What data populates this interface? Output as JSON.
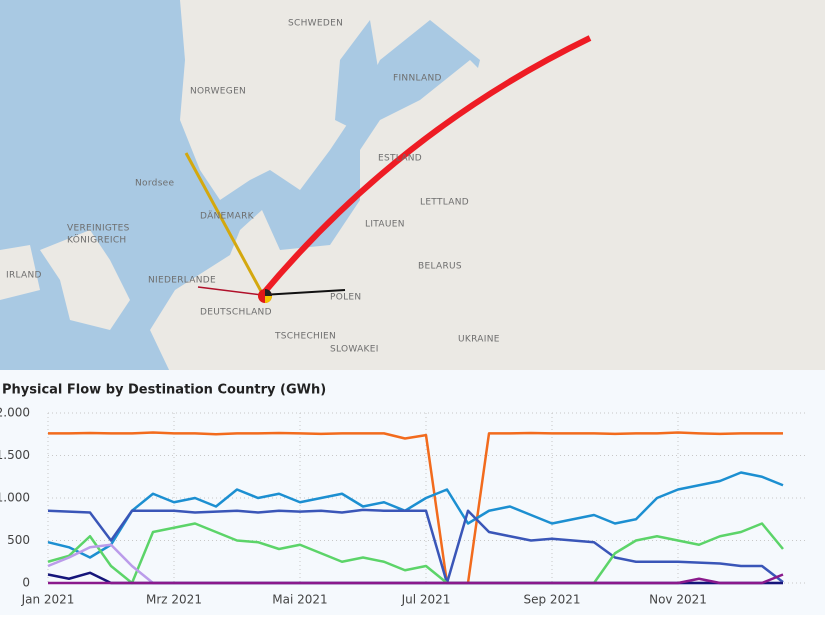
{
  "map": {
    "labels": [
      "SCHWEDEN",
      "FINNLAND",
      "NORWEGEN",
      "ESTLAND",
      "Nordsee",
      "DÄNEMARK",
      "LETTLAND",
      "LITAUEN",
      "VEREINIGTES",
      "KÖNIGREICH",
      "IRLAND",
      "NIEDERLANDE",
      "BELARUS",
      "DEUTSCHLAND",
      "POLEN",
      "TSCHECHIEN",
      "SLOWAKEI",
      "UKRAINE"
    ]
  },
  "chart_data": {
    "type": "line",
    "title": "Physical Flow by Destination Country (GWh)",
    "categories": [
      "Jan 2021",
      null,
      null,
      null,
      null,
      null,
      "Mrz 2021",
      null,
      null,
      null,
      null,
      null,
      "Mai 2021",
      null,
      null,
      null,
      null,
      null,
      "Jul 2021",
      null,
      null,
      null,
      null,
      null,
      "Sep 2021",
      null,
      null,
      null,
      null,
      null,
      "Nov 2021",
      null,
      null,
      null,
      null,
      null
    ],
    "ylim": [
      0,
      2000
    ],
    "yticks": [
      {
        "value": 0,
        "label": "0"
      },
      {
        "value": 500,
        "label": "500"
      },
      {
        "value": 1000,
        "label": "1.000"
      },
      {
        "value": 1500,
        "label": "1.500"
      },
      {
        "value": 2000,
        "label": "2.000"
      }
    ],
    "grid": true,
    "series": [
      {
        "color": "#f26b1d",
        "values": [
          1760,
          1760,
          1765,
          1760,
          1760,
          1770,
          1760,
          1760,
          1750,
          1760,
          1760,
          1765,
          1760,
          1755,
          1760,
          1760,
          1760,
          1700,
          1740,
          0,
          0,
          1760,
          1760,
          1765,
          1760,
          1760,
          1760,
          1755,
          1760,
          1760,
          1770,
          1760,
          1755,
          1760,
          1760,
          1760
        ]
      },
      {
        "color": "#1c8fd1",
        "values": [
          480,
          420,
          300,
          450,
          850,
          1050,
          950,
          1000,
          900,
          1100,
          1000,
          1050,
          950,
          1000,
          1050,
          900,
          950,
          850,
          1000,
          1100,
          700,
          850,
          900,
          800,
          700,
          750,
          800,
          700,
          750,
          1000,
          1100,
          1150,
          1200,
          1300,
          1250,
          1150
        ]
      },
      {
        "color": "#3a56b8",
        "values": [
          850,
          840,
          830,
          500,
          850,
          850,
          850,
          830,
          840,
          850,
          830,
          850,
          840,
          850,
          830,
          860,
          850,
          850,
          850,
          0,
          850,
          600,
          550,
          500,
          520,
          500,
          480,
          300,
          250,
          250,
          250,
          240,
          230,
          200,
          200,
          10
        ]
      },
      {
        "color": "#5cd469",
        "values": [
          250,
          320,
          550,
          200,
          0,
          600,
          650,
          700,
          600,
          500,
          480,
          400,
          450,
          350,
          250,
          300,
          250,
          150,
          200,
          0,
          0,
          0,
          0,
          0,
          0,
          0,
          0,
          350,
          500,
          550,
          500,
          450,
          550,
          600,
          700,
          400
        ]
      },
      {
        "color": "#bb9cea",
        "values": [
          200,
          300,
          420,
          450,
          200,
          0,
          0,
          0,
          0,
          0,
          0,
          0,
          0,
          0,
          0,
          0,
          0,
          0,
          0,
          0,
          0,
          0,
          0,
          0,
          0,
          0,
          0,
          0,
          0,
          0,
          0,
          0,
          0,
          0,
          0,
          0
        ]
      },
      {
        "color": "#15157a",
        "values": [
          100,
          50,
          120,
          0,
          0,
          0,
          0,
          0,
          0,
          0,
          0,
          0,
          0,
          0,
          0,
          0,
          0,
          0,
          0,
          0,
          0,
          0,
          0,
          0,
          0,
          0,
          0,
          0,
          0,
          0,
          0,
          0,
          0,
          0,
          0,
          0
        ]
      },
      {
        "color": "#8a1a8c",
        "values": [
          0,
          0,
          0,
          0,
          0,
          0,
          0,
          0,
          0,
          0,
          0,
          0,
          0,
          0,
          0,
          0,
          0,
          0,
          0,
          0,
          0,
          0,
          0,
          0,
          0,
          0,
          0,
          0,
          0,
          0,
          0,
          50,
          0,
          0,
          0,
          100
        ]
      }
    ]
  }
}
